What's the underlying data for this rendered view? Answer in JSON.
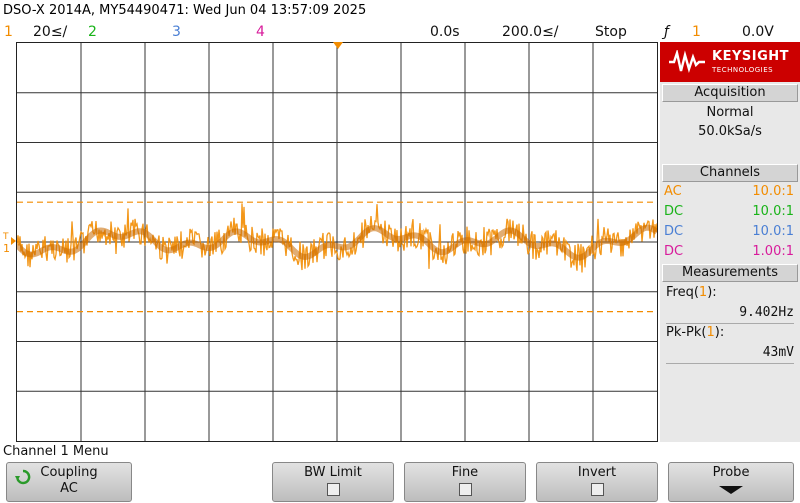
{
  "header": {
    "title": "DSO-X 2014A, MY54490471: Wed Jun 04 13:57:09 2025",
    "ch1_num": "1",
    "ch1_scale": "20≤/",
    "ch2_num": "2",
    "ch3_num": "3",
    "ch4_num": "4",
    "time_delay": "0.0s",
    "time_scale": "200.0≤/",
    "run_state": "Stop",
    "trigger_icon": "ƒ",
    "trigger_source": "1",
    "trigger_level": "0.0V"
  },
  "colors": {
    "ch1": "#f28c00",
    "ch2": "#19b319",
    "ch3": "#4a7fd4",
    "ch4": "#d81b9b",
    "brand": "#cc0000"
  },
  "waveform": {
    "ch1_trace_center_divisions": 0.0,
    "ch1_cursor_upper_divisions": 0.8,
    "ch1_cursor_lower_divisions": -1.4
  },
  "brand": {
    "name": "KEYSIGHT",
    "sub": "TECHNOLOGIES"
  },
  "acquisition": {
    "heading": "Acquisition",
    "mode": "Normal",
    "rate": "50.0kSa/s"
  },
  "channels": {
    "heading": "Channels",
    "rows": [
      {
        "coupling": "AC",
        "probe": "10.0:1"
      },
      {
        "coupling": "DC",
        "probe": "10.0:1"
      },
      {
        "coupling": "DC",
        "probe": "10.0:1"
      },
      {
        "coupling": "DC",
        "probe": "1.00:1"
      }
    ]
  },
  "measurements": {
    "heading": "Measurements",
    "items": [
      {
        "label": "Freq(1):",
        "value": "9.402Hz"
      },
      {
        "label": "Pk-Pk(1):",
        "value": "43mV"
      }
    ]
  },
  "menu": {
    "title": "Channel 1 Menu",
    "coupling_label": "Coupling",
    "coupling_value": "AC",
    "bw_limit_label": "BW Limit",
    "fine_label": "Fine",
    "invert_label": "Invert",
    "probe_label": "Probe"
  }
}
